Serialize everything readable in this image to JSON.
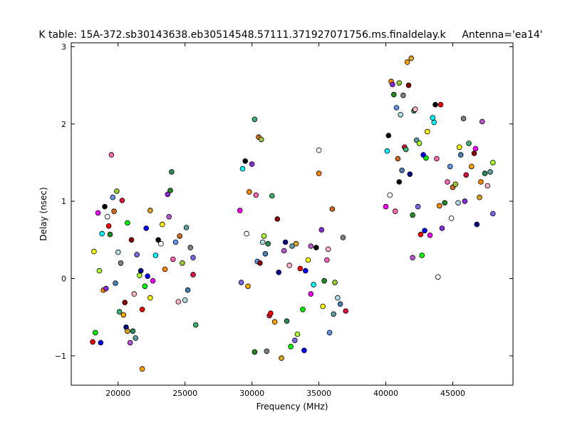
{
  "chart_data": {
    "type": "scatter",
    "title": "K table: 15A-372.sb30143638.eb30514548.57111.371927071756.ms.finaldelay.k",
    "subtitle": "Antenna='ea14'",
    "xlabel": "Frequency (MHz)",
    "ylabel": "Delay (nsec)",
    "xlim": [
      16500,
      49500
    ],
    "ylim": [
      -1.38,
      3.05
    ],
    "xticks": [
      20000,
      25000,
      30000,
      35000,
      40000,
      45000
    ],
    "yticks": [
      -1,
      0,
      1,
      2,
      3
    ],
    "grid": false,
    "palette": [
      "#ff0000",
      "#00ff00",
      "#0000ff",
      "#ffff00",
      "#ff00ff",
      "#00ffff",
      "#000000",
      "#ffffff",
      "#ff8800",
      "#8a2be2",
      "#228b22",
      "#ff69b4",
      "#6495ed",
      "#d2691e",
      "#9acd32",
      "#b0e0e6",
      "#4682b4",
      "#808080",
      "#dc143c",
      "#3cb371",
      "#ffa500",
      "#8b0000",
      "#00008b",
      "#daa520",
      "#ba55d3",
      "#2e8b57",
      "#ffb6c1",
      "#5f9ea0",
      "#7b68ee",
      "#adff2f"
    ],
    "points": [
      [
        18100,
        -0.82
      ],
      [
        18300,
        -0.7
      ],
      [
        18700,
        -0.83
      ],
      [
        18200,
        0.35
      ],
      [
        18500,
        0.85
      ],
      [
        18800,
        0.58
      ],
      [
        19000,
        0.93
      ],
      [
        19200,
        0.8
      ],
      [
        18900,
        -0.15
      ],
      [
        19100,
        -0.13
      ],
      [
        19400,
        0.57
      ],
      [
        19500,
        1.6
      ],
      [
        19600,
        1.05
      ],
      [
        19700,
        0.87
      ],
      [
        19900,
        1.13
      ],
      [
        20000,
        0.34
      ],
      [
        19800,
        -0.06
      ],
      [
        20200,
        0.2
      ],
      [
        20300,
        1.01
      ],
      [
        20100,
        -0.43
      ],
      [
        20400,
        -0.47
      ],
      [
        20500,
        -0.31
      ],
      [
        20600,
        -0.63
      ],
      [
        20700,
        -0.68
      ],
      [
        20900,
        -0.83
      ],
      [
        21100,
        -0.68
      ],
      [
        21200,
        -0.2
      ],
      [
        21300,
        -0.77
      ],
      [
        21400,
        0.31
      ],
      [
        21600,
        0.04
      ],
      [
        21800,
        -0.4
      ],
      [
        22000,
        -0.1
      ],
      [
        22200,
        0.03
      ],
      [
        22400,
        -0.25
      ],
      [
        22600,
        -0.03
      ],
      [
        22800,
        0.3
      ],
      [
        23000,
        0.5
      ],
      [
        23200,
        0.45
      ],
      [
        23500,
        0.12
      ],
      [
        23700,
        1.09
      ],
      [
        23900,
        1.14
      ],
      [
        24100,
        0.25
      ],
      [
        24300,
        0.47
      ],
      [
        24600,
        0.55
      ],
      [
        24800,
        0.2
      ],
      [
        25000,
        -0.28
      ],
      [
        25200,
        -0.15
      ],
      [
        25400,
        0.4
      ],
      [
        25600,
        0.05
      ],
      [
        25800,
        -0.6
      ],
      [
        21800,
        -1.17
      ],
      [
        21000,
        0.5
      ],
      [
        21700,
        0.1
      ],
      [
        22400,
        0.88
      ],
      [
        23800,
        0.8
      ],
      [
        24000,
        1.38
      ],
      [
        24500,
        -0.3
      ],
      [
        25100,
        0.66
      ],
      [
        25600,
        0.27
      ],
      [
        18600,
        0.1
      ],
      [
        19300,
        0.68
      ],
      [
        20700,
        0.72
      ],
      [
        22100,
        0.65
      ],
      [
        23300,
        0.7
      ],
      [
        29100,
        0.88
      ],
      [
        29300,
        1.42
      ],
      [
        29500,
        1.52
      ],
      [
        29600,
        0.58
      ],
      [
        29800,
        1.12
      ],
      [
        30000,
        1.48
      ],
      [
        30200,
        -0.95
      ],
      [
        30300,
        1.08
      ],
      [
        30400,
        0.22
      ],
      [
        30500,
        1.83
      ],
      [
        30700,
        1.8
      ],
      [
        30800,
        0.47
      ],
      [
        31000,
        0.32
      ],
      [
        31100,
        -0.94
      ],
      [
        31300,
        -0.48
      ],
      [
        31500,
        1.07
      ],
      [
        31700,
        -0.56
      ],
      [
        31900,
        0.77
      ],
      [
        32000,
        0.08
      ],
      [
        32200,
        -1.03
      ],
      [
        32400,
        0.36
      ],
      [
        32600,
        -0.55
      ],
      [
        32800,
        0.17
      ],
      [
        33000,
        0.42
      ],
      [
        33200,
        -0.8
      ],
      [
        33400,
        -0.72
      ],
      [
        33600,
        0.13
      ],
      [
        33800,
        -0.4
      ],
      [
        34000,
        0.1
      ],
      [
        34200,
        0.24
      ],
      [
        34400,
        -0.2
      ],
      [
        34600,
        -0.08
      ],
      [
        34800,
        0.4
      ],
      [
        35000,
        1.66
      ],
      [
        35000,
        1.36
      ],
      [
        35200,
        0.63
      ],
      [
        35400,
        -0.03
      ],
      [
        35600,
        0.24
      ],
      [
        35800,
        -0.7
      ],
      [
        36000,
        0.9
      ],
      [
        36200,
        -0.05
      ],
      [
        36400,
        -0.25
      ],
      [
        36600,
        -0.33
      ],
      [
        36800,
        0.53
      ],
      [
        37000,
        -0.42
      ],
      [
        30200,
        2.06
      ],
      [
        29700,
        -0.1
      ],
      [
        30600,
        0.2
      ],
      [
        32500,
        0.47
      ],
      [
        33300,
        0.45
      ],
      [
        34400,
        0.42
      ],
      [
        31200,
        0.45
      ],
      [
        35700,
        0.38
      ],
      [
        36100,
        -0.46
      ],
      [
        29200,
        -0.05
      ],
      [
        30900,
        0.55
      ],
      [
        31400,
        -0.45
      ],
      [
        32900,
        -0.88
      ],
      [
        33900,
        -0.93
      ],
      [
        35300,
        -0.36
      ],
      [
        40000,
        0.93
      ],
      [
        40100,
        1.65
      ],
      [
        40200,
        1.85
      ],
      [
        40300,
        1.08
      ],
      [
        40400,
        2.55
      ],
      [
        40500,
        2.51
      ],
      [
        40600,
        2.38
      ],
      [
        40700,
        0.87
      ],
      [
        40800,
        2.21
      ],
      [
        40900,
        1.55
      ],
      [
        41000,
        2.53
      ],
      [
        41100,
        2.12
      ],
      [
        41200,
        1.4
      ],
      [
        41300,
        2.37
      ],
      [
        41400,
        1.7
      ],
      [
        41500,
        1.67
      ],
      [
        41600,
        2.8
      ],
      [
        41700,
        2.5
      ],
      [
        41800,
        1.35
      ],
      [
        41900,
        2.85
      ],
      [
        42000,
        0.27
      ],
      [
        42100,
        2.17
      ],
      [
        42200,
        2.19
      ],
      [
        42300,
        1.79
      ],
      [
        42400,
        0.93
      ],
      [
        42500,
        1.75
      ],
      [
        42600,
        0.57
      ],
      [
        42700,
        0.3
      ],
      [
        42900,
        0.62
      ],
      [
        43100,
        1.9
      ],
      [
        43300,
        0.56
      ],
      [
        43500,
        2.08
      ],
      [
        43700,
        2.25
      ],
      [
        43900,
        0.02
      ],
      [
        44000,
        0.94
      ],
      [
        44200,
        0.65
      ],
      [
        44400,
        0.98
      ],
      [
        44600,
        1.25
      ],
      [
        44800,
        1.45
      ],
      [
        45000,
        1.18
      ],
      [
        45200,
        1.22
      ],
      [
        45400,
        0.98
      ],
      [
        45600,
        1.6
      ],
      [
        45800,
        2.07
      ],
      [
        46000,
        1.34
      ],
      [
        46200,
        1.75
      ],
      [
        46400,
        1.45
      ],
      [
        46600,
        1.62
      ],
      [
        46800,
        0.7
      ],
      [
        47000,
        1.05
      ],
      [
        47200,
        2.03
      ],
      [
        47400,
        1.36
      ],
      [
        47600,
        1.2
      ],
      [
        47800,
        1.38
      ],
      [
        48000,
        0.84
      ],
      [
        48000,
        1.5
      ],
      [
        44100,
        2.25
      ],
      [
        43000,
        1.56
      ],
      [
        42800,
        1.6
      ],
      [
        45500,
        1.7
      ],
      [
        46700,
        1.68
      ],
      [
        43600,
        2.02
      ],
      [
        41000,
        1.25
      ],
      [
        44900,
        0.78
      ],
      [
        47100,
        1.25
      ],
      [
        45900,
        1.0
      ],
      [
        42000,
        0.82
      ],
      [
        43800,
        1.55
      ]
    ]
  }
}
